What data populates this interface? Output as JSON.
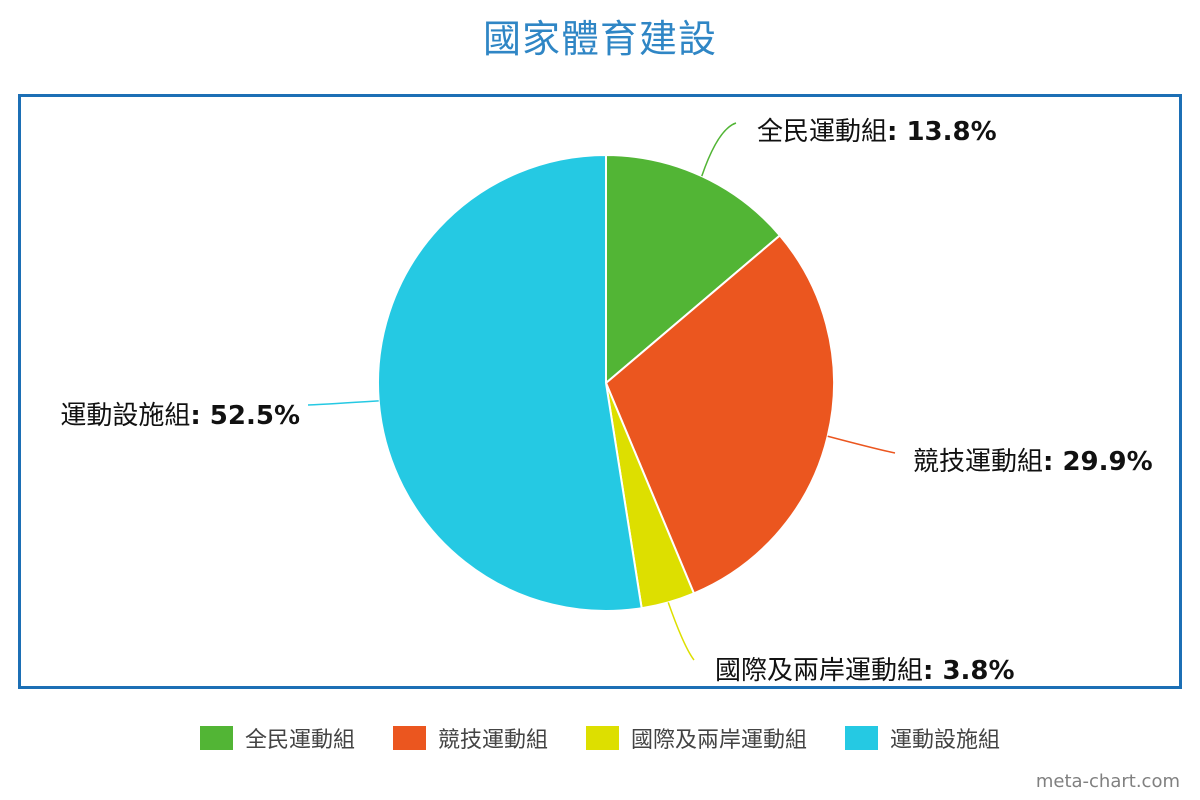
{
  "chart_data": {
    "type": "pie",
    "title": "國家體育建設",
    "categories": [
      "全民運動組",
      "競技運動組",
      "國際及兩岸運動組",
      "運動設施組"
    ],
    "values": [
      13.8,
      29.9,
      3.8,
      52.5
    ],
    "value_labels": [
      "13.8%",
      "29.9%",
      "3.8%",
      "52.5%"
    ],
    "colors": [
      "#52b535",
      "#eb561f",
      "#dddf00",
      "#25c9e3"
    ],
    "legend_position": "bottom",
    "start_angle": "top",
    "direction": "clockwise"
  },
  "colors": {
    "title": "#2f86c5",
    "frame": "#1c6fb5"
  },
  "credit": "meta-chart.com"
}
